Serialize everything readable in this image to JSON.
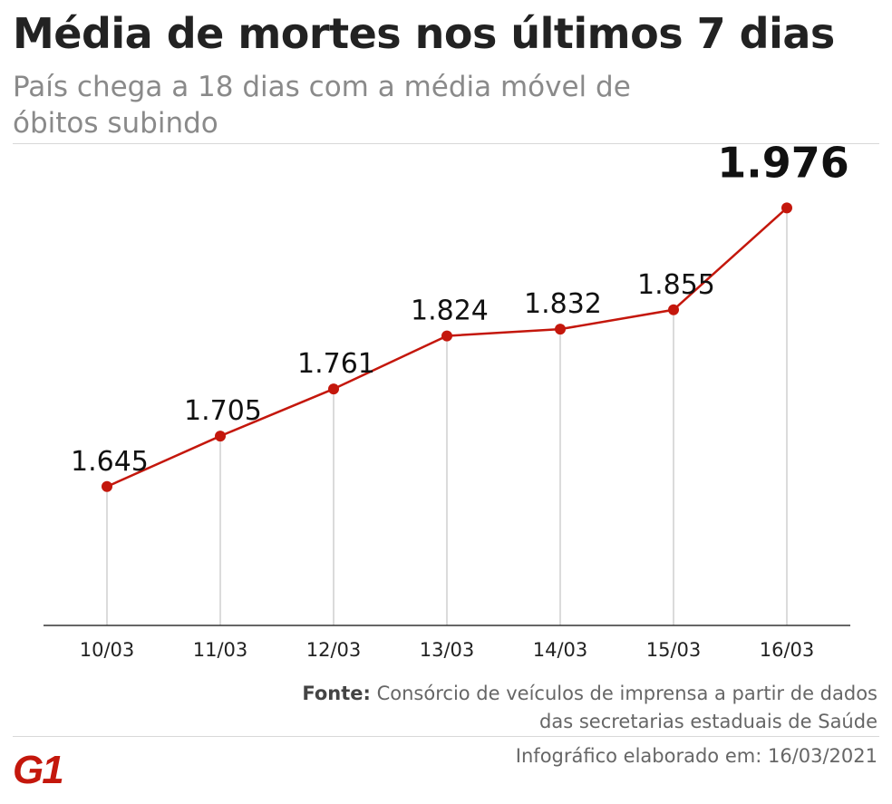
{
  "header": {
    "title": "Média de mortes nos últimos 7 dias",
    "subtitle": "País chega a 18 dias com a média móvel de óbitos subindo"
  },
  "chart_data": {
    "type": "line",
    "categories": [
      "10/03",
      "11/03",
      "12/03",
      "13/03",
      "14/03",
      "15/03",
      "16/03"
    ],
    "values": [
      1645,
      1705,
      1761,
      1824,
      1832,
      1855,
      1976
    ],
    "data_labels": [
      "1.645",
      "1.705",
      "1.761",
      "1.824",
      "1.832",
      "1.855",
      "1.976"
    ],
    "ylim": [
      1480,
      2040
    ],
    "grid": false,
    "colors": {
      "line": "#c4170c",
      "marker": "#c4170c",
      "drop_line": "#cfcfcf",
      "axis": "#333333"
    }
  },
  "footer": {
    "source_label": "Fonte:",
    "source_text": "Consórcio de veículos de imprensa a partir de dados das secretarias estaduais de Saúde",
    "credit": "Infográfico elaborado em: 16/03/2021",
    "logo_text": "G1",
    "logo_color": "#c4170c"
  }
}
